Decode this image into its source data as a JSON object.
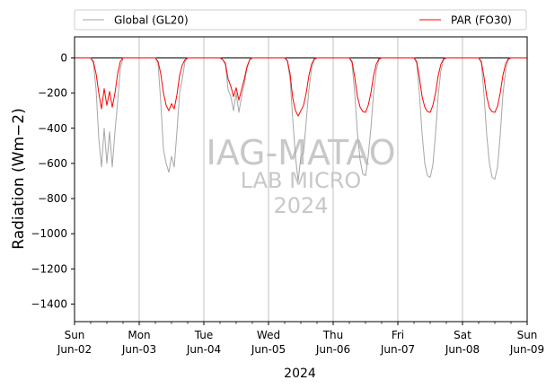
{
  "chart_data": {
    "type": "line",
    "xlabel": "2024",
    "ylabel": "Radiation (Wm−2)",
    "ylim": [
      -1500,
      120
    ],
    "yticks": [
      0,
      -200,
      -400,
      -600,
      -800,
      -1000,
      -1200,
      -1400
    ],
    "xlim": [
      "2024-06-02",
      "2024-06-09"
    ],
    "x_ticks": [
      {
        "date": "2024-06-02",
        "day": "Sun",
        "label": "Jun-02"
      },
      {
        "date": "2024-06-03",
        "day": "Mon",
        "label": "Jun-03"
      },
      {
        "date": "2024-06-04",
        "day": "Tue",
        "label": "Jun-04"
      },
      {
        "date": "2024-06-05",
        "day": "Wed",
        "label": "Jun-05"
      },
      {
        "date": "2024-06-06",
        "day": "Thu",
        "label": "Jun-06"
      },
      {
        "date": "2024-06-07",
        "day": "Fri",
        "label": "Jun-07"
      },
      {
        "date": "2024-06-08",
        "day": "Sat",
        "label": "Jun-08"
      },
      {
        "date": "2024-06-09",
        "day": "Sun",
        "label": "Jun-09"
      }
    ],
    "grid": "vertical at day ticks",
    "zero_line": true,
    "legend_placement": "above plot",
    "watermark": [
      "IAG-MATAO",
      "LAB MICRO",
      "2024"
    ],
    "series": [
      {
        "name": "Global (GL20)",
        "color": "#a6a6a6",
        "x": [
          "2024-06-02 00:00",
          "2024-06-02 06:00",
          "2024-06-02 07:00",
          "2024-06-02 08:00",
          "2024-06-02 09:00",
          "2024-06-02 10:00",
          "2024-06-02 11:00",
          "2024-06-02 12:00",
          "2024-06-02 13:00",
          "2024-06-02 14:00",
          "2024-06-02 15:00",
          "2024-06-02 16:00",
          "2024-06-02 17:00",
          "2024-06-02 18:00",
          "2024-06-03 06:00",
          "2024-06-03 07:00",
          "2024-06-03 08:00",
          "2024-06-03 09:00",
          "2024-06-03 10:00",
          "2024-06-03 11:00",
          "2024-06-03 12:00",
          "2024-06-03 13:00",
          "2024-06-03 14:00",
          "2024-06-03 15:00",
          "2024-06-03 16:00",
          "2024-06-03 17:00",
          "2024-06-03 18:00",
          "2024-06-04 06:00",
          "2024-06-04 07:00",
          "2024-06-04 08:00",
          "2024-06-04 09:00",
          "2024-06-04 10:00",
          "2024-06-04 11:00",
          "2024-06-04 12:00",
          "2024-06-04 13:00",
          "2024-06-04 14:00",
          "2024-06-04 15:00",
          "2024-06-04 16:00",
          "2024-06-04 17:00",
          "2024-06-04 18:00",
          "2024-06-05 06:00",
          "2024-06-05 07:00",
          "2024-06-05 08:00",
          "2024-06-05 09:00",
          "2024-06-05 10:00",
          "2024-06-05 11:00",
          "2024-06-05 12:00",
          "2024-06-05 13:00",
          "2024-06-05 14:00",
          "2024-06-05 15:00",
          "2024-06-05 16:00",
          "2024-06-05 17:00",
          "2024-06-05 18:00",
          "2024-06-06 06:00",
          "2024-06-06 07:00",
          "2024-06-06 08:00",
          "2024-06-06 09:00",
          "2024-06-06 10:00",
          "2024-06-06 11:00",
          "2024-06-06 12:00",
          "2024-06-06 13:00",
          "2024-06-06 14:00",
          "2024-06-06 15:00",
          "2024-06-06 16:00",
          "2024-06-06 17:00",
          "2024-06-06 18:00",
          "2024-06-07 06:00",
          "2024-06-07 07:00",
          "2024-06-07 08:00",
          "2024-06-07 09:00",
          "2024-06-07 10:00",
          "2024-06-07 11:00",
          "2024-06-07 12:00",
          "2024-06-07 13:00",
          "2024-06-07 14:00",
          "2024-06-07 15:00",
          "2024-06-07 16:00",
          "2024-06-07 17:00",
          "2024-06-07 18:00",
          "2024-06-08 06:00",
          "2024-06-08 07:00",
          "2024-06-08 08:00",
          "2024-06-08 09:00",
          "2024-06-08 10:00",
          "2024-06-08 11:00",
          "2024-06-08 12:00",
          "2024-06-08 13:00",
          "2024-06-08 14:00",
          "2024-06-08 15:00",
          "2024-06-08 16:00",
          "2024-06-08 17:00",
          "2024-06-08 18:00",
          "2024-06-09 00:00"
        ],
        "values": [
          0,
          0,
          -30,
          -180,
          -460,
          -620,
          -400,
          -600,
          -420,
          -620,
          -420,
          -250,
          -60,
          0,
          0,
          -30,
          -250,
          -520,
          -600,
          -650,
          -560,
          -620,
          -420,
          -200,
          -120,
          -20,
          0,
          0,
          -10,
          -40,
          -180,
          -220,
          -300,
          -200,
          -310,
          -220,
          -150,
          -60,
          -10,
          0,
          0,
          -20,
          -120,
          -350,
          -560,
          -700,
          -560,
          -540,
          -360,
          -180,
          -60,
          -10,
          0,
          0,
          -30,
          -200,
          -430,
          -580,
          -660,
          -670,
          -560,
          -400,
          -200,
          -70,
          -10,
          0,
          0,
          -30,
          -200,
          -430,
          -600,
          -670,
          -680,
          -610,
          -430,
          -210,
          -70,
          -10,
          0,
          0,
          -30,
          -210,
          -440,
          -600,
          -680,
          -690,
          -620,
          -440,
          -210,
          -70,
          -10,
          0,
          0
        ]
      },
      {
        "name": "PAR (FO30)",
        "color": "#ff0000",
        "x": [
          "2024-06-02 00:00",
          "2024-06-02 06:00",
          "2024-06-02 07:00",
          "2024-06-02 08:00",
          "2024-06-02 09:00",
          "2024-06-02 10:00",
          "2024-06-02 11:00",
          "2024-06-02 12:00",
          "2024-06-02 13:00",
          "2024-06-02 14:00",
          "2024-06-02 15:00",
          "2024-06-02 16:00",
          "2024-06-02 17:00",
          "2024-06-02 18:00",
          "2024-06-03 06:00",
          "2024-06-03 07:00",
          "2024-06-03 08:00",
          "2024-06-03 09:00",
          "2024-06-03 10:00",
          "2024-06-03 11:00",
          "2024-06-03 12:00",
          "2024-06-03 13:00",
          "2024-06-03 14:00",
          "2024-06-03 15:00",
          "2024-06-03 16:00",
          "2024-06-03 17:00",
          "2024-06-03 18:00",
          "2024-06-04 06:00",
          "2024-06-04 07:00",
          "2024-06-04 08:00",
          "2024-06-04 09:00",
          "2024-06-04 10:00",
          "2024-06-04 11:00",
          "2024-06-04 12:00",
          "2024-06-04 13:00",
          "2024-06-04 14:00",
          "2024-06-04 15:00",
          "2024-06-04 16:00",
          "2024-06-04 17:00",
          "2024-06-04 18:00",
          "2024-06-05 06:00",
          "2024-06-05 07:00",
          "2024-06-05 08:00",
          "2024-06-05 09:00",
          "2024-06-05 10:00",
          "2024-06-05 11:00",
          "2024-06-05 12:00",
          "2024-06-05 13:00",
          "2024-06-05 14:00",
          "2024-06-05 15:00",
          "2024-06-05 16:00",
          "2024-06-05 17:00",
          "2024-06-05 18:00",
          "2024-06-06 06:00",
          "2024-06-06 07:00",
          "2024-06-06 08:00",
          "2024-06-06 09:00",
          "2024-06-06 10:00",
          "2024-06-06 11:00",
          "2024-06-06 12:00",
          "2024-06-06 13:00",
          "2024-06-06 14:00",
          "2024-06-06 15:00",
          "2024-06-06 16:00",
          "2024-06-06 17:00",
          "2024-06-06 18:00",
          "2024-06-07 06:00",
          "2024-06-07 07:00",
          "2024-06-07 08:00",
          "2024-06-07 09:00",
          "2024-06-07 10:00",
          "2024-06-07 11:00",
          "2024-06-07 12:00",
          "2024-06-07 13:00",
          "2024-06-07 14:00",
          "2024-06-07 15:00",
          "2024-06-07 16:00",
          "2024-06-07 17:00",
          "2024-06-07 18:00",
          "2024-06-08 06:00",
          "2024-06-08 07:00",
          "2024-06-08 08:00",
          "2024-06-08 09:00",
          "2024-06-08 10:00",
          "2024-06-08 11:00",
          "2024-06-08 12:00",
          "2024-06-08 13:00",
          "2024-06-08 14:00",
          "2024-06-08 15:00",
          "2024-06-08 16:00",
          "2024-06-08 17:00",
          "2024-06-08 18:00",
          "2024-06-09 00:00"
        ],
        "values": [
          0,
          0,
          -20,
          -90,
          -200,
          -290,
          -175,
          -270,
          -190,
          -280,
          -200,
          -90,
          -20,
          0,
          0,
          -20,
          -90,
          -200,
          -270,
          -300,
          -260,
          -290,
          -210,
          -100,
          -40,
          -10,
          0,
          0,
          -10,
          -30,
          -120,
          -160,
          -220,
          -170,
          -240,
          -180,
          -120,
          -50,
          -10,
          0,
          0,
          -15,
          -90,
          -230,
          -300,
          -330,
          -300,
          -270,
          -200,
          -100,
          -35,
          -5,
          0,
          0,
          -20,
          -110,
          -220,
          -280,
          -305,
          -310,
          -270,
          -200,
          -100,
          -35,
          -5,
          0,
          0,
          -20,
          -110,
          -220,
          -280,
          -305,
          -310,
          -270,
          -200,
          -100,
          -35,
          -5,
          0,
          0,
          -20,
          -110,
          -220,
          -285,
          -305,
          -310,
          -275,
          -200,
          -100,
          -35,
          -5,
          0,
          0
        ]
      }
    ]
  }
}
